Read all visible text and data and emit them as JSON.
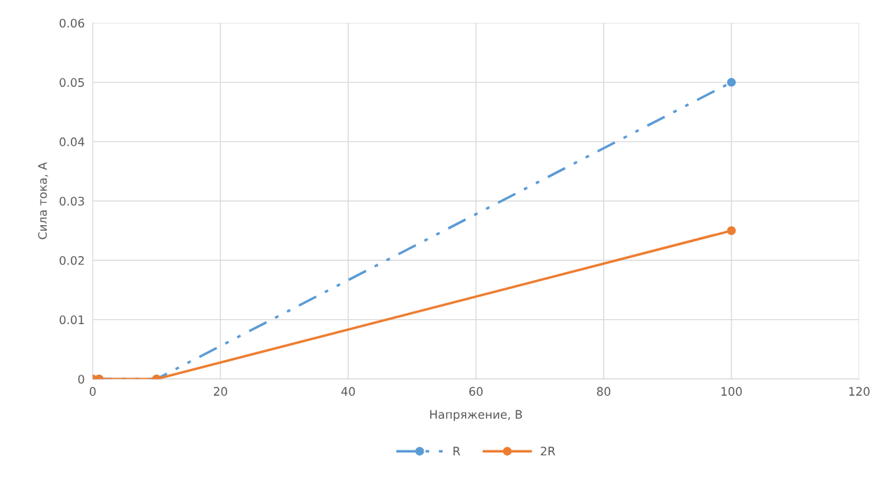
{
  "chart_data": {
    "type": "line",
    "xlabel": "Напряжение, В",
    "ylabel": "Сила тока, А",
    "x": [
      0,
      1,
      10,
      100
    ],
    "series": [
      {
        "name": "R",
        "color": "#5b9bd5",
        "values": [
          0,
          0,
          0,
          0.05
        ],
        "line_style": "dashed"
      },
      {
        "name": "2R",
        "color": "#ed7d31",
        "values": [
          0,
          0,
          0,
          0.025
        ],
        "line_style": "solid"
      }
    ],
    "xlim": [
      0,
      120
    ],
    "xticks": [
      0,
      20,
      40,
      60,
      80,
      100,
      120
    ],
    "ylim": [
      0,
      0.06
    ],
    "yticks": [
      0,
      0.01,
      0.02,
      0.03,
      0.04,
      0.05,
      0.06
    ],
    "grid": true,
    "legend": "bottom",
    "marker": "circle"
  }
}
